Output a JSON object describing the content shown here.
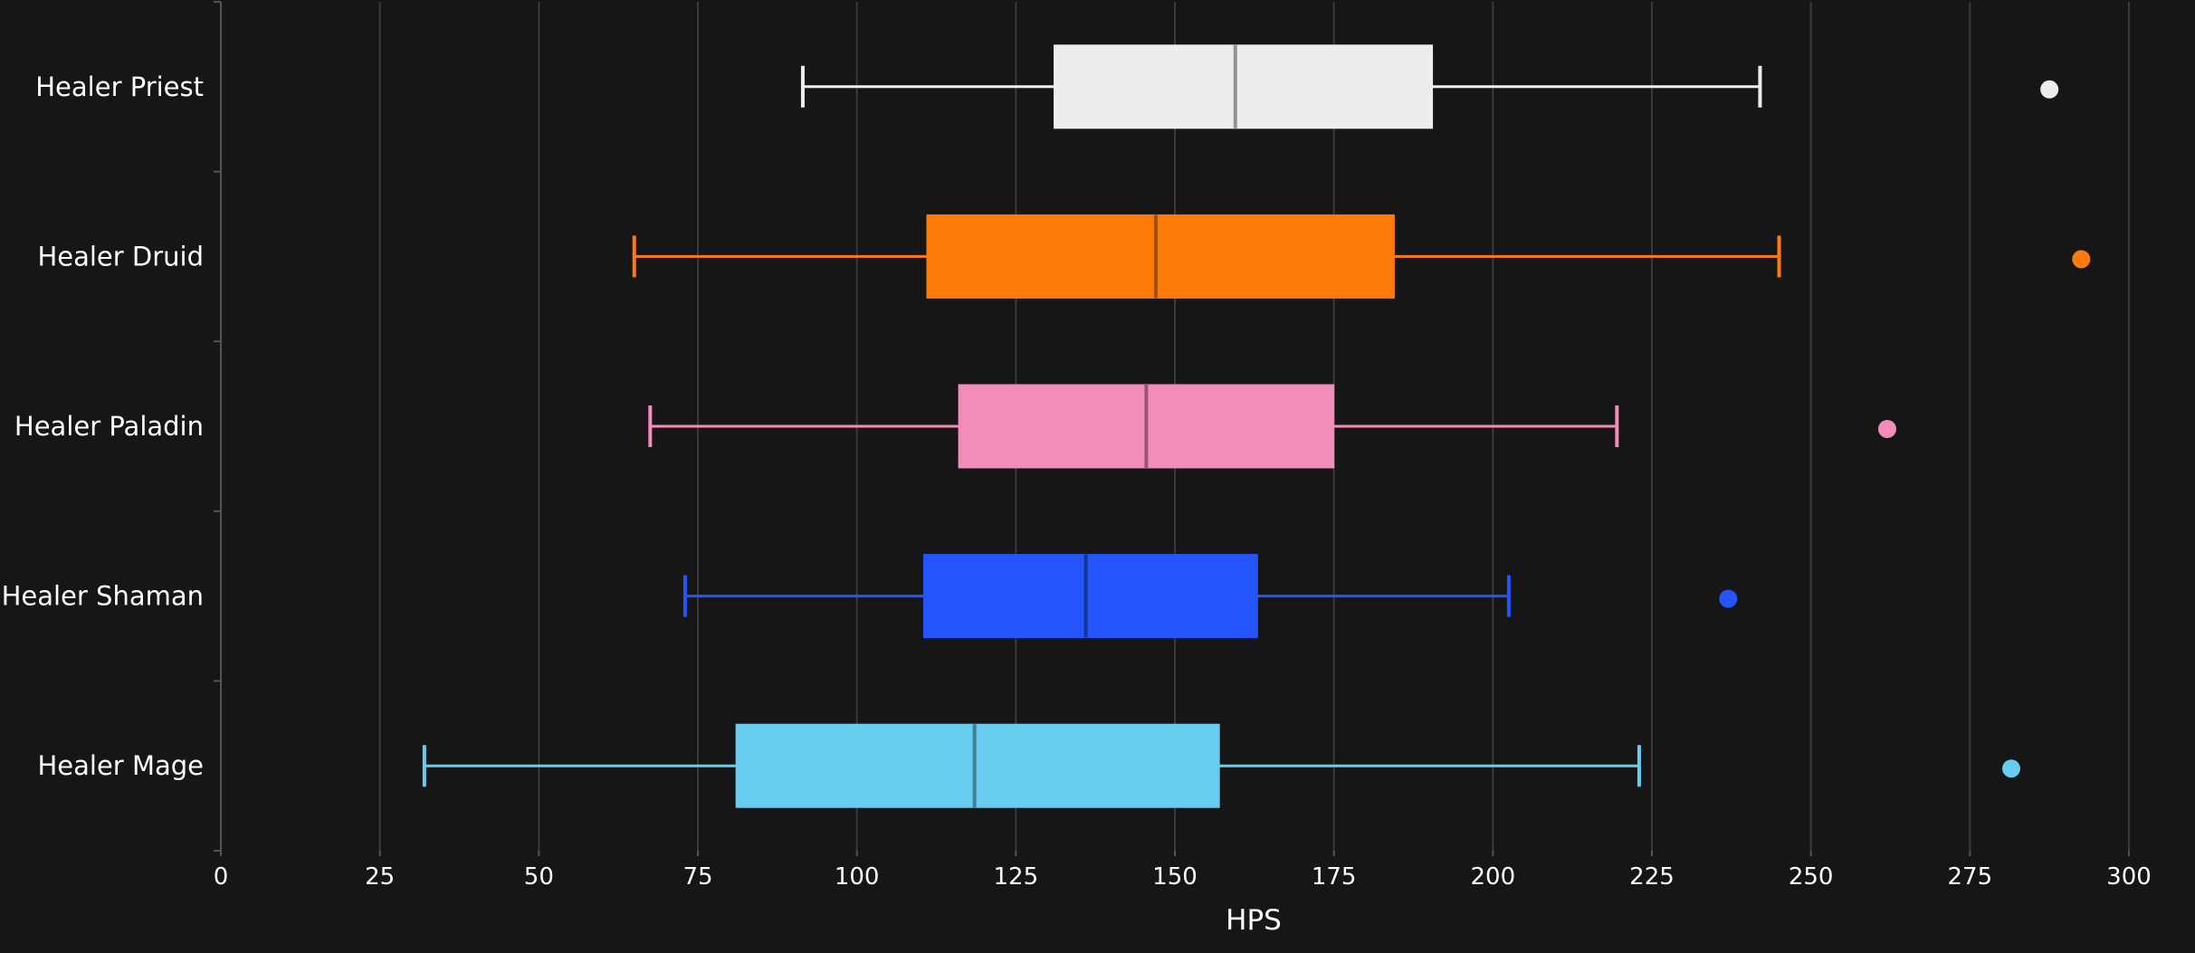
{
  "chart_data": {
    "type": "box",
    "orientation": "horizontal",
    "xlabel": "HPS",
    "ylabel": "",
    "xlim": [
      0,
      300
    ],
    "xticks": [
      0,
      25,
      50,
      75,
      100,
      125,
      150,
      175,
      200,
      225,
      250,
      275,
      300
    ],
    "grid": "vertical",
    "categories": [
      "Healer Priest",
      "Healer Druid",
      "Healer Paladin",
      "Healer Shaman",
      "Healer Mage"
    ],
    "series": [
      {
        "category": "Healer Priest",
        "color": "#EDEDED",
        "whisker_low": 91.5,
        "q1": 131,
        "median": 159.5,
        "q3": 190.5,
        "whisker_high": 242,
        "outliers": [
          287.5
        ]
      },
      {
        "category": "Healer Druid",
        "color": "#FF7C0A",
        "whisker_low": 65,
        "q1": 111,
        "median": 147,
        "q3": 184.5,
        "whisker_high": 245,
        "outliers": [
          292.5
        ]
      },
      {
        "category": "Healer Paladin",
        "color": "#F48CBA",
        "whisker_low": 67.5,
        "q1": 116,
        "median": 145.5,
        "q3": 175,
        "whisker_high": 219.5,
        "outliers": [
          262
        ]
      },
      {
        "category": "Healer Shaman",
        "color": "#2555FF",
        "whisker_low": 73,
        "q1": 110.5,
        "median": 136,
        "q3": 163,
        "whisker_high": 202.5,
        "outliers": [
          237
        ]
      },
      {
        "category": "Healer Mage",
        "color": "#68CCEF",
        "whisker_low": 32,
        "q1": 81,
        "median": 118.5,
        "q3": 157,
        "whisker_high": 223,
        "outliers": [
          281.5
        ]
      }
    ]
  },
  "colors": {
    "background": "#161616",
    "grid": "#3a3a3a",
    "axis": "#555555",
    "text": "#ffffff"
  }
}
